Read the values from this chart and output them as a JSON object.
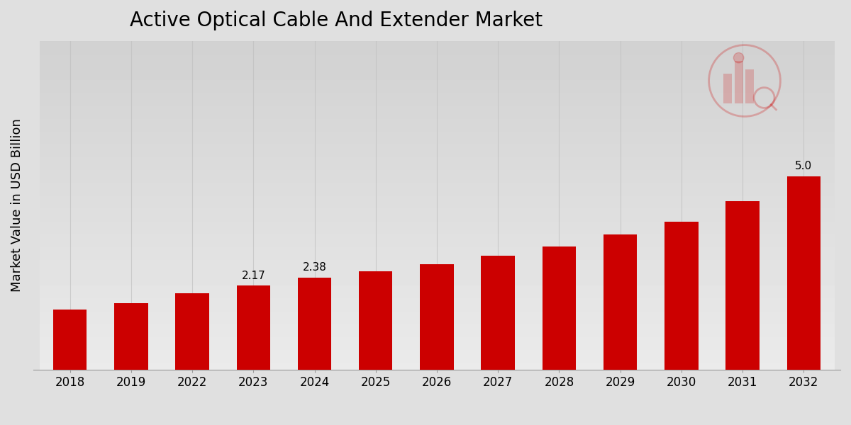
{
  "title": "Active Optical Cable And Extender Market",
  "ylabel": "Market Value in USD Billion",
  "categories": [
    "2018",
    "2019",
    "2022",
    "2023",
    "2024",
    "2025",
    "2026",
    "2027",
    "2028",
    "2029",
    "2030",
    "2031",
    "2032"
  ],
  "values": [
    1.55,
    1.72,
    1.97,
    2.17,
    2.38,
    2.55,
    2.72,
    2.95,
    3.18,
    3.5,
    3.82,
    4.35,
    5.0
  ],
  "bar_color": "#CC0000",
  "background_top": "#DCDCDC",
  "background_bottom": "#E8E8E8",
  "grid_color": "#C0C0C0",
  "title_fontsize": 20,
  "label_fontsize": 13,
  "tick_fontsize": 12,
  "annotation_fontsize": 11,
  "annotations": {
    "2023": "2.17",
    "2024": "2.38",
    "2032": "5.0"
  },
  "ylim": [
    0,
    8.5
  ],
  "footer_color": "#CC0000",
  "bar_width": 0.55
}
